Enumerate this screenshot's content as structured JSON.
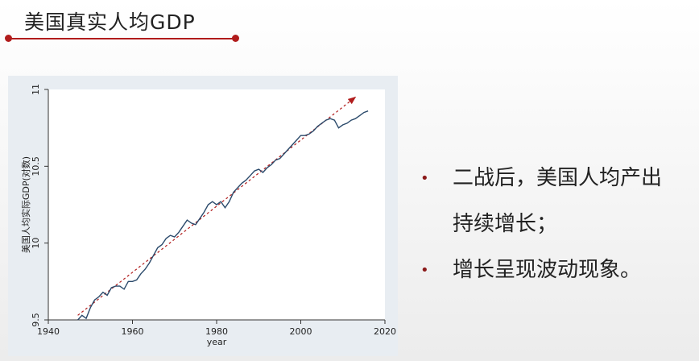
{
  "slide": {
    "title": "美国真实人均GDP"
  },
  "bullets": [
    {
      "mark": "•",
      "lines": [
        "二战后，美国人均产出",
        "持续增长；"
      ]
    },
    {
      "mark": "•",
      "lines": [
        "增长呈现波动现象。"
      ]
    }
  ],
  "colors": {
    "accent": "#b11c1c",
    "plot_panel": "#e8edf2",
    "series_line": "#2b4a6b",
    "trend_line": "#b11c1c"
  },
  "chart_data": {
    "type": "line",
    "xlabel": "year",
    "ylabel": "美国人均实际GDP(对数)",
    "xlim": [
      1940,
      2020
    ],
    "ylim": [
      9.5,
      11
    ],
    "x_ticks": [
      "1940",
      "1960",
      "1980",
      "2000",
      "2020"
    ],
    "y_ticks": [
      "9.5",
      "10",
      "10.5",
      "11"
    ],
    "grid": false,
    "legend": "none",
    "series": [
      {
        "x": [
          1947,
          1948,
          1949,
          1950,
          1951,
          1952,
          1953,
          1954,
          1955,
          1956,
          1957,
          1958,
          1959,
          1960,
          1961,
          1962,
          1963,
          1964,
          1965,
          1966,
          1967,
          1968,
          1969,
          1970,
          1971,
          1972,
          1973,
          1974,
          1975,
          1976,
          1977,
          1978,
          1979,
          1980,
          1981,
          1982,
          1983,
          1984,
          1985,
          1986,
          1987,
          1988,
          1989,
          1990,
          1991,
          1992,
          1993,
          1994,
          1995,
          1996,
          1997,
          1998,
          1999,
          2000,
          2001,
          2002,
          2003,
          2004,
          2005,
          2006,
          2007,
          2008,
          2009,
          2010,
          2011,
          2012,
          2013,
          2014,
          2015,
          2016
        ],
        "y": [
          9.5,
          9.53,
          9.51,
          9.58,
          9.63,
          9.65,
          9.68,
          9.66,
          9.71,
          9.72,
          9.72,
          9.7,
          9.75,
          9.75,
          9.76,
          9.8,
          9.83,
          9.87,
          9.92,
          9.97,
          9.99,
          10.03,
          10.05,
          10.04,
          10.07,
          10.11,
          10.15,
          10.13,
          10.12,
          10.16,
          10.2,
          10.25,
          10.27,
          10.25,
          10.27,
          10.23,
          10.27,
          10.33,
          10.36,
          10.39,
          10.41,
          10.44,
          10.47,
          10.48,
          10.46,
          10.49,
          10.51,
          10.54,
          10.55,
          10.58,
          10.61,
          10.64,
          10.67,
          10.7,
          10.7,
          10.71,
          10.73,
          10.76,
          10.78,
          10.8,
          10.81,
          10.8,
          10.75,
          10.77,
          10.78,
          10.8,
          10.81,
          10.83,
          10.85,
          10.86
        ]
      },
      {
        "x": [
          1947,
          2013
        ],
        "y": [
          9.53,
          10.95
        ]
      }
    ]
  }
}
